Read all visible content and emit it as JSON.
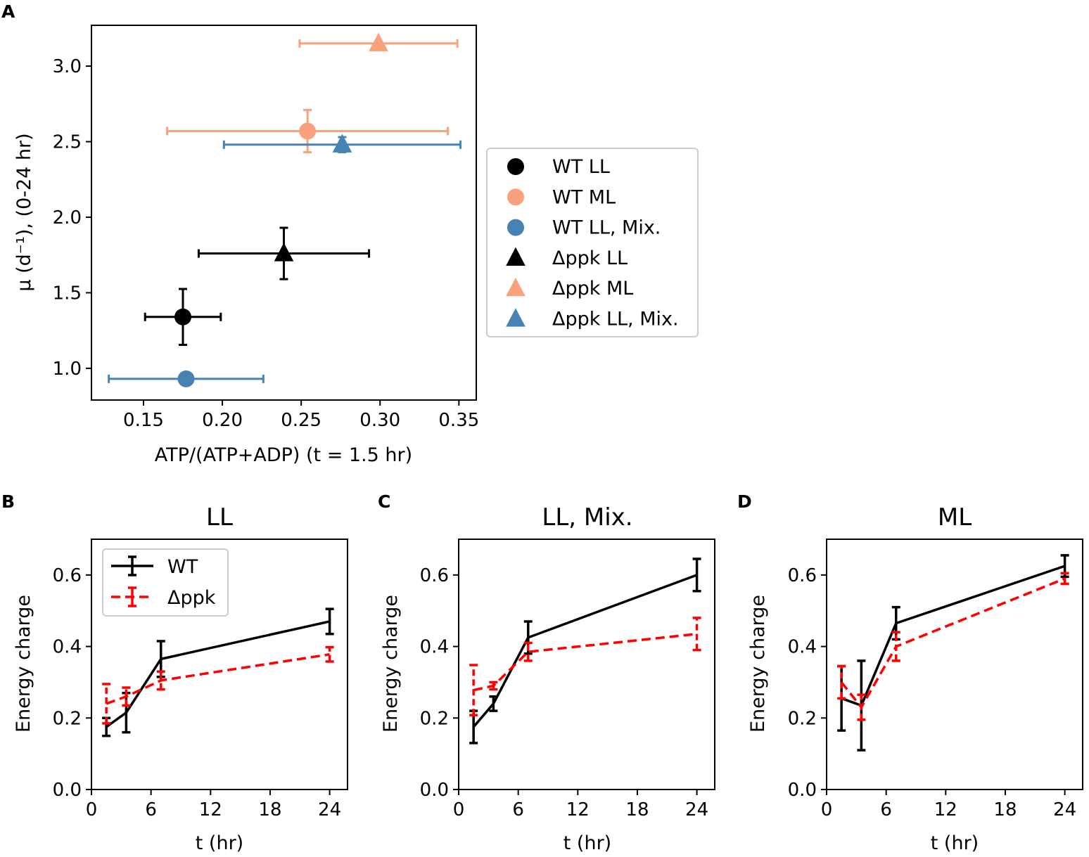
{
  "colors": {
    "wt_ll": "#000000",
    "wt_ml": "#f9a07c",
    "wt_mix": "#4682b4",
    "wt_line": "#000000",
    "dppk_line": "#ff0000",
    "axes": "#000000",
    "legend_border": "#cccccc"
  },
  "chart_data": [
    {
      "id": "A",
      "panel_letter": "A",
      "type": "scatter",
      "title": "",
      "xlabel": "ATP/(ATP+ADP) (t = 1.5 hr)",
      "ylabel": "μ (d⁻¹), (0-24 hr)",
      "xlim": [
        0.117,
        0.361
      ],
      "ylim": [
        0.79,
        3.27
      ],
      "xticks": [
        0.15,
        0.2,
        0.25,
        0.3,
        0.35
      ],
      "xtick_labels": [
        "0.15",
        "0.20",
        "0.25",
        "0.30",
        "0.35"
      ],
      "yticks": [
        1.0,
        1.5,
        2.0,
        2.5,
        3.0
      ],
      "ytick_labels": [
        "1.0",
        "1.5",
        "2.0",
        "2.5",
        "3.0"
      ],
      "legend_position": "right-outside",
      "series": [
        {
          "name": "WT LL",
          "marker": "circle",
          "color": "#000000",
          "x": 0.175,
          "y": 1.34,
          "xerr": 0.024,
          "yerr": 0.185
        },
        {
          "name": "WT ML",
          "marker": "circle",
          "color": "#f9a07c",
          "x": 0.254,
          "y": 2.57,
          "xerr": 0.089,
          "yerr": 0.14
        },
        {
          "name": "WT LL, Mix.",
          "marker": "circle",
          "color": "#4682b4",
          "x": 0.177,
          "y": 0.93,
          "xerr": 0.049,
          "yerr": 0
        },
        {
          "name": "Δppk LL",
          "marker": "triangle",
          "color": "#000000",
          "x": 0.239,
          "y": 1.76,
          "xerr": 0.054,
          "yerr": 0.17
        },
        {
          "name": "Δppk ML",
          "marker": "triangle",
          "color": "#f9a07c",
          "x": 0.299,
          "y": 3.15,
          "xerr": 0.05,
          "yerr": 0
        },
        {
          "name": "Δppk LL, Mix.",
          "marker": "triangle",
          "color": "#4682b4",
          "x": 0.276,
          "y": 2.48,
          "xerr": 0.075,
          "yerr": 0.05
        }
      ]
    },
    {
      "id": "B",
      "panel_letter": "B",
      "type": "line",
      "title": "LL",
      "xlabel": "t (hr)",
      "ylabel": "Energy charge",
      "xlim": [
        0,
        25.8
      ],
      "ylim": [
        0,
        0.7
      ],
      "xticks": [
        0,
        6,
        12,
        18,
        24
      ],
      "xtick_labels": [
        "0",
        "6",
        "12",
        "18",
        "24"
      ],
      "yticks": [
        0,
        0.2,
        0.4,
        0.6
      ],
      "ytick_labels": [
        "0.0",
        "0.2",
        "0.4",
        "0.6"
      ],
      "x": [
        1.5,
        3.5,
        7,
        24
      ],
      "show_legend": true,
      "legend_position": "upper-left",
      "series": [
        {
          "name": "WT",
          "style": "solid",
          "color": "#000000",
          "values": [
            0.175,
            0.215,
            0.365,
            0.47
          ],
          "errors": [
            0.025,
            0.055,
            0.05,
            0.035
          ]
        },
        {
          "name": "Δppk",
          "style": "dashed",
          "color": "#ff0000",
          "values": [
            0.24,
            0.26,
            0.305,
            0.378
          ],
          "errors": [
            0.055,
            0.025,
            0.025,
            0.02
          ]
        }
      ]
    },
    {
      "id": "C",
      "panel_letter": "C",
      "type": "line",
      "title": "LL, Mix.",
      "xlabel": "t (hr)",
      "ylabel": "Energy charge",
      "xlim": [
        0,
        25.8
      ],
      "ylim": [
        0,
        0.7
      ],
      "xticks": [
        0,
        6,
        12,
        18,
        24
      ],
      "xtick_labels": [
        "0",
        "6",
        "12",
        "18",
        "24"
      ],
      "yticks": [
        0,
        0.2,
        0.4,
        0.6
      ],
      "ytick_labels": [
        "0.0",
        "0.2",
        "0.4",
        "0.6"
      ],
      "x": [
        1.5,
        3.5,
        7,
        24
      ],
      "show_legend": false,
      "series": [
        {
          "name": "WT",
          "style": "solid",
          "color": "#000000",
          "values": [
            0.175,
            0.24,
            0.425,
            0.6
          ],
          "errors": [
            0.045,
            0.02,
            0.045,
            0.045
          ]
        },
        {
          "name": "Δppk",
          "style": "dashed",
          "color": "#ff0000",
          "values": [
            0.278,
            0.29,
            0.385,
            0.435
          ],
          "errors": [
            0.07,
            0.01,
            0.025,
            0.045
          ]
        }
      ]
    },
    {
      "id": "D",
      "panel_letter": "D",
      "type": "line",
      "title": "ML",
      "xlabel": "t (hr)",
      "ylabel": "Energy charge",
      "xlim": [
        0,
        25.8
      ],
      "ylim": [
        0,
        0.7
      ],
      "xticks": [
        0,
        6,
        12,
        18,
        24
      ],
      "xtick_labels": [
        "0",
        "6",
        "12",
        "18",
        "24"
      ],
      "yticks": [
        0,
        0.2,
        0.4,
        0.6
      ],
      "ytick_labels": [
        "0.0",
        "0.2",
        "0.4",
        "0.6"
      ],
      "x": [
        1.5,
        3.5,
        7,
        24
      ],
      "show_legend": false,
      "series": [
        {
          "name": "WT",
          "style": "solid",
          "color": "#000000",
          "values": [
            0.255,
            0.235,
            0.465,
            0.625
          ],
          "errors": [
            0.09,
            0.125,
            0.045,
            0.03
          ]
        },
        {
          "name": "Δppk",
          "style": "dashed",
          "color": "#ff0000",
          "values": [
            0.3,
            0.23,
            0.4,
            0.59
          ],
          "errors": [
            0.045,
            0.035,
            0.04,
            0.015
          ]
        }
      ]
    }
  ]
}
